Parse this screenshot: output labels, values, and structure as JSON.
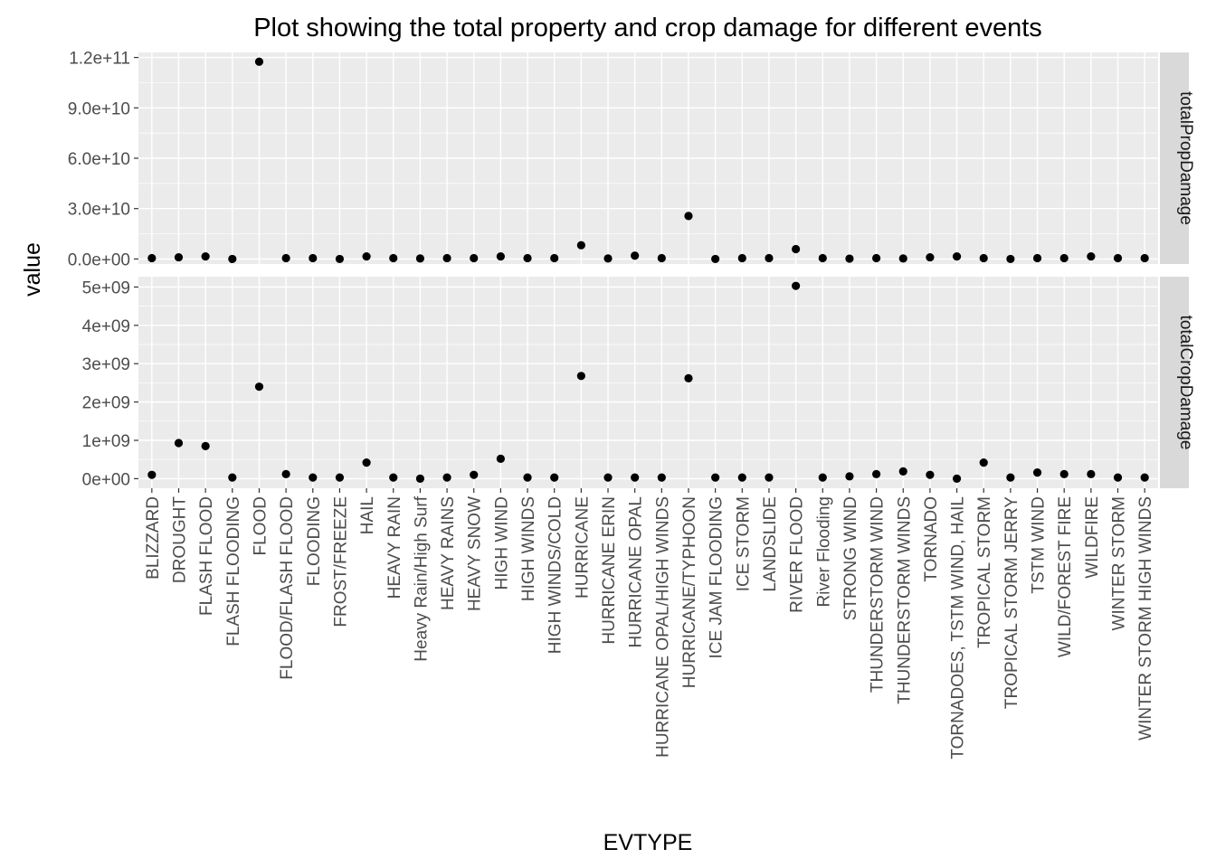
{
  "chart_data": {
    "type": "scatter",
    "title": "Plot showing the total property and crop damage for different events",
    "xlabel": "EVTYPE",
    "ylabel": "value",
    "grid": true,
    "categories": [
      "BLIZZARD",
      "DROUGHT",
      "FLASH FLOOD",
      "FLASH FLOODING",
      "FLOOD",
      "FLOOD/FLASH FLOOD",
      "FLOODING",
      "FROST/FREEZE",
      "HAIL",
      "HEAVY RAIN",
      "Heavy Rain/High Surf",
      "HEAVY RAINS",
      "HEAVY SNOW",
      "HIGH WIND",
      "HIGH WINDS",
      "HIGH WINDS/COLD",
      "HURRICANE",
      "HURRICANE ERIN",
      "HURRICANE OPAL",
      "HURRICANE OPAL/HIGH WINDS",
      "HURRICANE/TYPHOON",
      "ICE JAM FLOODING",
      "ICE STORM",
      "LANDSLIDE",
      "RIVER FLOOD",
      "River Flooding",
      "STRONG WIND",
      "THUNDERSTORM WIND",
      "THUNDERSTORM WINDS",
      "TORNADO",
      "TORNADOES, TSTM WIND, HAIL",
      "TROPICAL STORM",
      "TROPICAL STORM JERRY",
      "TSTM WIND",
      "WILD/FOREST FIRE",
      "WILDFIRE",
      "WINTER STORM",
      "WINTER STORM HIGH WINDS"
    ],
    "panels": [
      {
        "name": "totalPropDamage",
        "ylim": [
          -3000000000,
          123000000000
        ],
        "yticks": [
          0,
          30000000000,
          60000000000,
          90000000000,
          120000000000
        ],
        "ytick_labels": [
          "0.0e+00",
          "3.0e+10",
          "6.0e+10",
          "9.0e+10",
          "1.2e+11"
        ],
        "values": [
          500000000,
          1000000000,
          1500000000,
          0,
          117500000000,
          500000000,
          500000000,
          0,
          1500000000,
          500000000,
          300000000,
          500000000,
          500000000,
          1500000000,
          500000000,
          500000000,
          8200000000,
          300000000,
          2000000000,
          500000000,
          25600000000,
          0,
          500000000,
          500000000,
          5900000000,
          500000000,
          200000000,
          500000000,
          300000000,
          1000000000,
          1500000000,
          500000000,
          0,
          500000000,
          500000000,
          1500000000,
          500000000,
          500000000
        ]
      },
      {
        "name": "totalCropDamage",
        "ylim": [
          -250000000,
          5270000000
        ],
        "yticks": [
          0,
          1000000000,
          2000000000,
          3000000000,
          4000000000,
          5000000000
        ],
        "ytick_labels": [
          "0e+00",
          "1e+09",
          "2e+09",
          "3e+09",
          "4e+09",
          "5e+09"
        ],
        "values": [
          100000000,
          930000000,
          850000000,
          30000000,
          2400000000,
          120000000,
          30000000,
          30000000,
          420000000,
          30000000,
          0,
          30000000,
          100000000,
          520000000,
          30000000,
          30000000,
          2680000000,
          30000000,
          30000000,
          30000000,
          2620000000,
          30000000,
          30000000,
          30000000,
          5030000000,
          30000000,
          60000000,
          120000000,
          190000000,
          100000000,
          0,
          420000000,
          30000000,
          160000000,
          120000000,
          120000000,
          30000000,
          30000000
        ]
      }
    ]
  }
}
